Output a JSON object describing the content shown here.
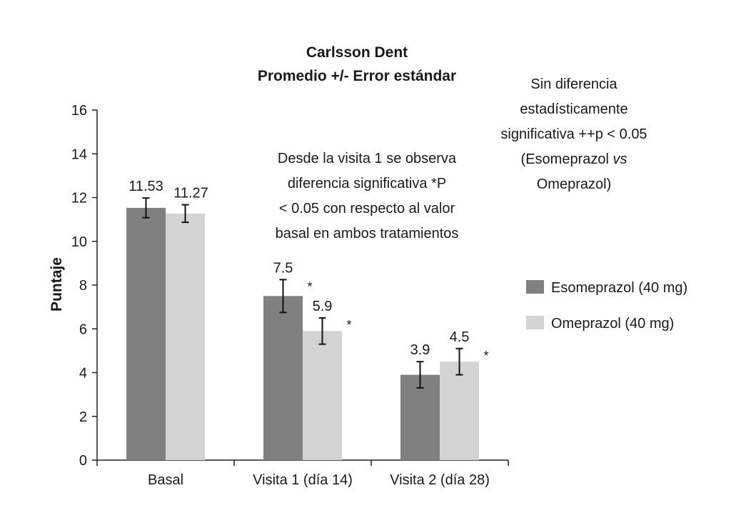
{
  "chart_data": {
    "type": "bar",
    "title": "Carlsson Dent",
    "subtitle": "Promedio +/- Error estándar",
    "ylabel": "Puntaje",
    "xlabel": "",
    "ylim": [
      0,
      16
    ],
    "yticks": [
      0,
      2,
      4,
      6,
      8,
      10,
      12,
      14,
      16
    ],
    "categories": [
      "Basal",
      "Visita 1 (día 14)",
      "Visita 2 (día 28)"
    ],
    "series": [
      {
        "name": "Esomeprazol (40 mg)",
        "color": "#808080",
        "values": [
          11.53,
          7.5,
          3.9
        ],
        "labels": [
          "11.53",
          "7.5",
          "3.9"
        ],
        "error": [
          0.45,
          0.75,
          0.6
        ],
        "markers": [
          "",
          "*",
          "*"
        ]
      },
      {
        "name": "Omeprazol (40 mg)",
        "color": "#d3d3d3",
        "values": [
          11.27,
          5.9,
          4.5
        ],
        "labels": [
          "11.27",
          "5.9",
          "4.5"
        ],
        "error": [
          0.4,
          0.6,
          0.6
        ],
        "markers": [
          "",
          "*",
          "*"
        ]
      }
    ],
    "annotations": [
      [
        "Desde la visita 1 se observa",
        "diferencia significativa *P",
        "< 0.05 con respecto al valor",
        "basal en ambos tratamientos"
      ],
      [
        "Sin diferencia",
        "estadísticamente",
        "significativa ++p < 0.05",
        "(Esomeprazol vs",
        "Omeprazol)"
      ]
    ],
    "annotation_italic_word": "vs",
    "legend_position": "right",
    "grid": false
  }
}
